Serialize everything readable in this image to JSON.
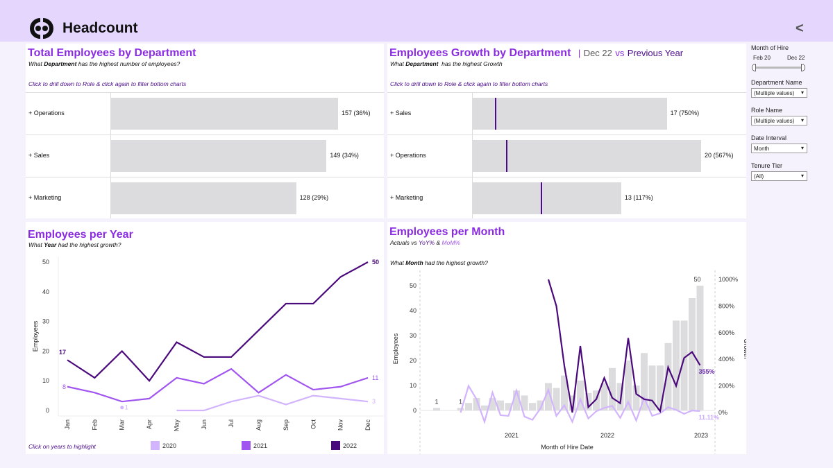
{
  "header": {
    "title": "Headcount",
    "back_icon": "<"
  },
  "dept_total": {
    "title": "Total Employees by Department",
    "subtitle_pre": "What ",
    "subtitle_bold": "Department",
    "subtitle_post": " has the highest number of employees?",
    "hint": "Click to drill down to Role & click again to filter bottom charts",
    "rows": [
      {
        "label": "+ Operations",
        "value": 157,
        "text": "157 (36%)"
      },
      {
        "label": "+ Sales",
        "value": 149,
        "text": "149 (34%)"
      },
      {
        "label": "+ Marketing",
        "value": 128,
        "text": "128 (29%)"
      }
    ]
  },
  "dept_growth": {
    "title": "Employees Growth by Department",
    "sep": "|",
    "period": "Dec 22",
    "vs": "vs",
    "compare": "Previous Year",
    "subtitle_pre": "What ",
    "subtitle_bold": "Department",
    "subtitle_post": "  has the highest Growth",
    "hint": "Click to drill down to Role & click again to filter bottom charts",
    "rows": [
      {
        "label": "+ Sales",
        "value": 17,
        "previous": 2,
        "text": "17 (750%)"
      },
      {
        "label": "+ Operations",
        "value": 20,
        "previous": 3,
        "text": "20 (567%)"
      },
      {
        "label": "+ Marketing",
        "value": 13,
        "previous": 6,
        "text": "13 (117%)"
      }
    ]
  },
  "filters": {
    "month_of_hire": {
      "label": "Month of Hire",
      "start": "Feb 20",
      "end": "Dec 22"
    },
    "department": {
      "label": "Department Name",
      "value": "(Multiple values)"
    },
    "role": {
      "label": "Role Name",
      "value": "(Multiple values)"
    },
    "date_interval": {
      "label": "Date Interval",
      "value": "Month"
    },
    "tenure": {
      "label": "Tenure Tier",
      "value": "(All)"
    }
  },
  "per_year": {
    "title": "Employees per Year",
    "subtitle_pre": "What ",
    "subtitle_bold": "Year",
    "subtitle_post": " had the highest growth?",
    "hint": "Click on years to highlight"
  },
  "per_month": {
    "title": "Employees per Month",
    "subtitle_pre": "Actuals vs ",
    "yoy": "YoY%",
    "amp": " & ",
    "mom": "MoM%",
    "question_pre": "What ",
    "question_bold": "Month",
    "question_post": " had the highest growth?"
  },
  "colors": {
    "accent": "#8a2be2",
    "y2020": "#d2b4fd",
    "y2021": "#a155f0",
    "y2022": "#4b0a7c",
    "bar": "#dcdcde"
  },
  "chart_data": [
    {
      "type": "line",
      "title": "Employees per Year",
      "xlabel": "",
      "ylabel": "Employees",
      "categories": [
        "Jan",
        "Feb",
        "Mar",
        "Apr",
        "May",
        "Jun",
        "Jul",
        "Aug",
        "Sep",
        "Oct",
        "Nov",
        "Dec"
      ],
      "ylim": [
        0,
        50
      ],
      "yticks": [
        0,
        10,
        20,
        30,
        40,
        50
      ],
      "series": [
        {
          "name": "2020",
          "values": [
            null,
            null,
            1,
            null,
            0,
            0,
            3,
            5,
            2,
            5,
            4,
            3
          ],
          "first_label": "1",
          "last_label": "3"
        },
        {
          "name": "2021",
          "values": [
            8,
            6,
            3,
            4,
            11,
            9,
            14,
            6,
            12,
            7,
            8,
            11
          ],
          "first_label": "8",
          "last_label": "11"
        },
        {
          "name": "2022",
          "values": [
            17,
            11,
            20,
            10,
            23,
            18,
            18,
            27,
            36,
            36,
            45,
            50
          ],
          "first_label": "17",
          "last_label": "50"
        }
      ],
      "legend": "bottom"
    },
    {
      "type": "bar",
      "title": "Employees per Month",
      "xlabel": "Month of Hire Date",
      "ylabel": "Employees",
      "y2label": "Growth",
      "ylim": [
        0,
        50
      ],
      "yticks": [
        0,
        10,
        20,
        30,
        40,
        50
      ],
      "y2lim": [
        0,
        1000
      ],
      "y2ticks": [
        "0%",
        "200%",
        "400%",
        "600%",
        "800%",
        "1000%"
      ],
      "xticks": [
        "2021",
        "2022",
        "2023"
      ],
      "values": [
        1,
        0,
        0,
        1,
        3,
        5,
        2,
        5,
        4,
        3,
        8,
        6,
        3,
        4,
        11,
        9,
        14,
        6,
        12,
        7,
        8,
        11,
        17,
        11,
        20,
        10,
        23,
        18,
        18,
        27,
        36,
        36,
        45,
        50
      ],
      "bar_labels": {
        "first": "1",
        "second": "1",
        "last": "50"
      },
      "series": [
        {
          "name": "YoY%",
          "start_index": 14,
          "values": [
            1000,
            800,
            350,
            0,
            500,
            40,
            100,
            260,
            110,
            70,
            560,
            140,
            100,
            90,
            10,
            340,
            200,
            410,
            455,
            355
          ],
          "end_label": "355%"
        },
        {
          "name": "MoM%",
          "start_index": 3,
          "values": [
            0,
            200,
            100,
            -70,
            150,
            -20,
            -25,
            165,
            -30,
            -55,
            30,
            170,
            -25,
            55,
            -70,
            100,
            -45,
            10,
            35,
            50,
            -40,
            80,
            -60,
            110,
            -25,
            -5,
            40,
            20,
            -10,
            15,
            11.11
          ],
          "end_label": "11.11%"
        }
      ]
    }
  ]
}
